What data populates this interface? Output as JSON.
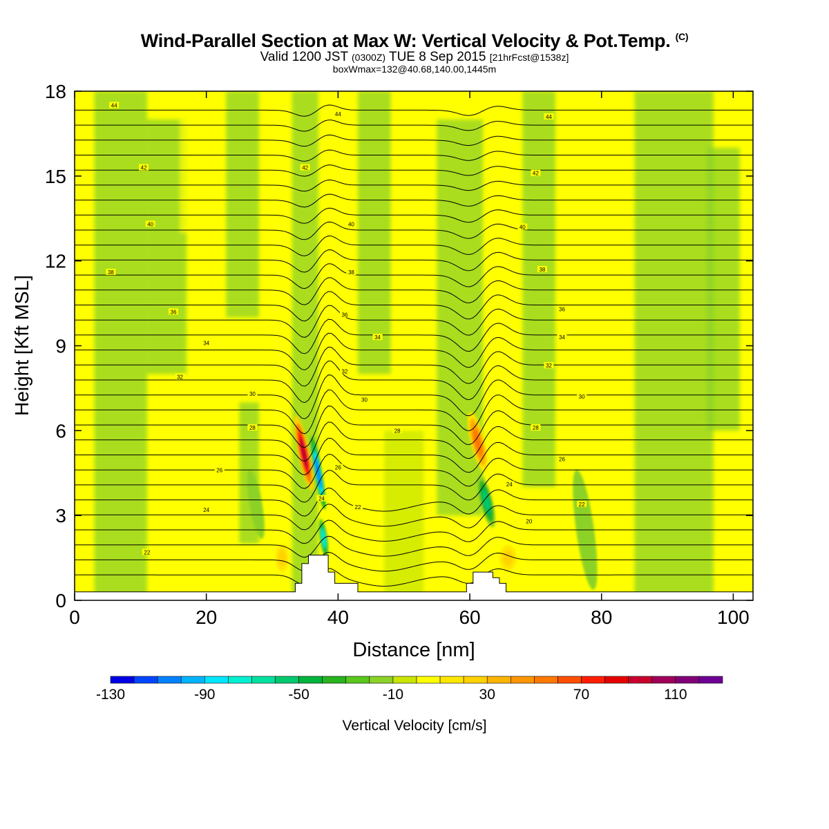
{
  "title": {
    "main": "Wind-Parallel Section at Max W: Vertical Velocity & Pot.Temp.",
    "copyright": "(C)",
    "valid_a": "Valid 1200 JST",
    "valid_utc": "(0300Z)",
    "valid_b": "TUE 8 Sep 2015",
    "valid_fcst": "[21hrFcst@1538z]",
    "boxinfo": "boxWmax=132@40.68,140.00,1445m"
  },
  "colorbar": {
    "label": "Vertical Velocity [cm/s]",
    "ticks": [
      "-130",
      "-90",
      "-50",
      "-10",
      "30",
      "70",
      "110"
    ],
    "tick_values": [
      -130,
      -90,
      -50,
      -10,
      30,
      70,
      110
    ],
    "levels": [
      -130,
      -120,
      -110,
      -100,
      -90,
      -80,
      -70,
      -60,
      -50,
      -40,
      -30,
      -20,
      -10,
      0,
      10,
      20,
      30,
      40,
      50,
      60,
      70,
      80,
      90,
      100,
      110,
      120,
      130
    ],
    "colors": [
      "#0000e6",
      "#0046ff",
      "#0082ff",
      "#00b4ff",
      "#00e6ff",
      "#00f0d2",
      "#00e1a0",
      "#00c86e",
      "#00b43c",
      "#28b41e",
      "#5ac81e",
      "#8cd228",
      "#c8e600",
      "#ffff00",
      "#ffe600",
      "#ffd200",
      "#ffb400",
      "#ff9600",
      "#ff7800",
      "#ff5000",
      "#ff1e00",
      "#e60000",
      "#c8002d",
      "#a0005a",
      "#820078",
      "#6e0096"
    ]
  },
  "chart_data": {
    "type": "heatmap",
    "xlabel": "Distance [nm]",
    "ylabel": "Height [Kft MSL]",
    "xlim": [
      0,
      103
    ],
    "ylim": [
      0,
      18
    ],
    "xticks": [
      "0",
      "20",
      "40",
      "60",
      "80",
      "100"
    ],
    "xtick_values": [
      0,
      20,
      40,
      60,
      80,
      100
    ],
    "yticks": [
      "0",
      "3",
      "6",
      "9",
      "12",
      "15",
      "18"
    ],
    "ytick_values": [
      0,
      3,
      6,
      9,
      12,
      15,
      18
    ],
    "terrain_kft": [
      [
        0,
        0.3
      ],
      [
        33.5,
        0.3
      ],
      [
        33.5,
        0.6
      ],
      [
        34.5,
        0.6
      ],
      [
        34.5,
        1.3
      ],
      [
        35.5,
        1.3
      ],
      [
        35.5,
        1.6
      ],
      [
        38.5,
        1.6
      ],
      [
        38.5,
        1.0
      ],
      [
        39.5,
        1.0
      ],
      [
        39.5,
        0.6
      ],
      [
        43,
        0.6
      ],
      [
        43,
        0.3
      ],
      [
        59.5,
        0.3
      ],
      [
        59.5,
        0.6
      ],
      [
        60.5,
        0.6
      ],
      [
        60.5,
        1.0
      ],
      [
        63.5,
        1.0
      ],
      [
        63.5,
        0.8
      ],
      [
        64.5,
        0.8
      ],
      [
        64.5,
        0.6
      ],
      [
        65.5,
        0.6
      ],
      [
        65.5,
        0.3
      ],
      [
        103,
        0.3
      ]
    ],
    "vertical_velocity_features_cm_s": [
      {
        "x": 34.8,
        "z": 5.2,
        "value": 95
      },
      {
        "x": 37.0,
        "z": 4.5,
        "value": -105
      },
      {
        "x": 37.8,
        "z": 2.2,
        "value": -80
      },
      {
        "x": 61.2,
        "z": 5.6,
        "value": 55
      },
      {
        "x": 62.5,
        "z": 3.5,
        "value": -55
      },
      {
        "x": 65.8,
        "z": 1.5,
        "value": 25
      },
      {
        "x": 31.5,
        "z": 1.5,
        "value": 25
      },
      {
        "x": 77.5,
        "z": 2.5,
        "value": -20
      },
      {
        "x": 27.5,
        "z": 3.4,
        "value": -18
      }
    ],
    "theta_labels": [
      {
        "text": "44",
        "x": 6,
        "z": 17.5
      },
      {
        "text": "44",
        "x": 40,
        "z": 17.2
      },
      {
        "text": "44",
        "x": 72,
        "z": 17.1
      },
      {
        "text": "42",
        "x": 10.5,
        "z": 15.3
      },
      {
        "text": "42",
        "x": 35,
        "z": 15.3
      },
      {
        "text": "42",
        "x": 70,
        "z": 15.1
      },
      {
        "text": "40",
        "x": 11.5,
        "z": 13.3
      },
      {
        "text": "40",
        "x": 42,
        "z": 13.3
      },
      {
        "text": "40",
        "x": 68,
        "z": 13.2
      },
      {
        "text": "38",
        "x": 5.5,
        "z": 11.6
      },
      {
        "text": "38",
        "x": 42,
        "z": 11.6
      },
      {
        "text": "38",
        "x": 71,
        "z": 11.7
      },
      {
        "text": "36",
        "x": 15,
        "z": 10.2
      },
      {
        "text": "36",
        "x": 41,
        "z": 10.1
      },
      {
        "text": "36",
        "x": 74,
        "z": 10.3
      },
      {
        "text": "34",
        "x": 20,
        "z": 9.1
      },
      {
        "text": "34",
        "x": 46,
        "z": 9.3
      },
      {
        "text": "34",
        "x": 74,
        "z": 9.3
      },
      {
        "text": "32",
        "x": 16,
        "z": 7.9
      },
      {
        "text": "32",
        "x": 41,
        "z": 8.1
      },
      {
        "text": "32",
        "x": 72,
        "z": 8.3
      },
      {
        "text": "30",
        "x": 27,
        "z": 7.3
      },
      {
        "text": "30",
        "x": 44,
        "z": 7.1
      },
      {
        "text": "30",
        "x": 77,
        "z": 7.2
      },
      {
        "text": "28",
        "x": 27,
        "z": 6.1
      },
      {
        "text": "28",
        "x": 49,
        "z": 6.0
      },
      {
        "text": "28",
        "x": 70,
        "z": 6.1
      },
      {
        "text": "26",
        "x": 22,
        "z": 4.6
      },
      {
        "text": "26",
        "x": 40,
        "z": 4.7
      },
      {
        "text": "26",
        "x": 74,
        "z": 5.0
      },
      {
        "text": "24",
        "x": 20,
        "z": 3.2
      },
      {
        "text": "24",
        "x": 37.5,
        "z": 3.6
      },
      {
        "text": "24",
        "x": 66,
        "z": 4.1
      },
      {
        "text": "22",
        "x": 11,
        "z": 1.7
      },
      {
        "text": "22",
        "x": 43,
        "z": 3.3
      },
      {
        "text": "22",
        "x": 77,
        "z": 3.4
      },
      {
        "text": "20",
        "x": 69,
        "z": 2.8
      }
    ]
  }
}
